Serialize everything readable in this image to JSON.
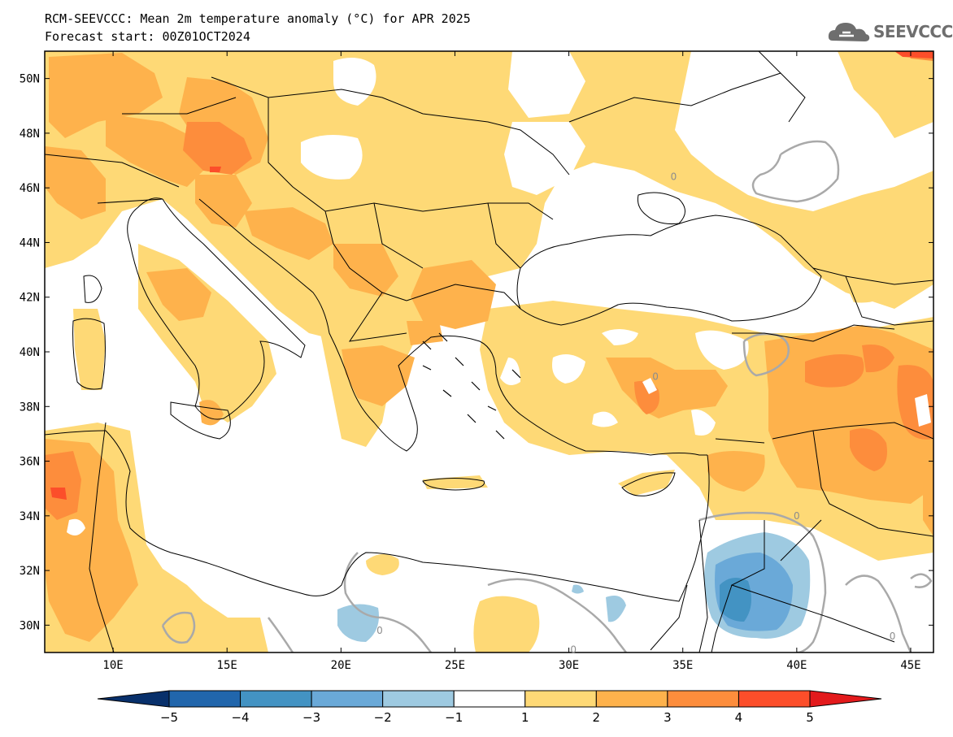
{
  "header": {
    "title": "RCM-SEEVCCC: Mean 2m temperature anomaly (°C) for APR 2025",
    "subtitle": "Forecast start: 00Z01OCT2024",
    "logo_text": "SEEVCCC"
  },
  "map": {
    "projection": "lat-lon",
    "lon_range": [
      7,
      46
    ],
    "lat_range": [
      29,
      51
    ],
    "lon_ticks": [
      {
        "value": 10,
        "label": "10E"
      },
      {
        "value": 15,
        "label": "15E"
      },
      {
        "value": 20,
        "label": "20E"
      },
      {
        "value": 25,
        "label": "25E"
      },
      {
        "value": 30,
        "label": "30E"
      },
      {
        "value": 35,
        "label": "35E"
      },
      {
        "value": 40,
        "label": "40E"
      },
      {
        "value": 45,
        "label": "45E"
      }
    ],
    "lat_ticks": [
      {
        "value": 50,
        "label": "50N"
      },
      {
        "value": 48,
        "label": "48N"
      },
      {
        "value": 46,
        "label": "46N"
      },
      {
        "value": 44,
        "label": "44N"
      },
      {
        "value": 42,
        "label": "42N"
      },
      {
        "value": 40,
        "label": "40N"
      },
      {
        "value": 38,
        "label": "38N"
      },
      {
        "value": 36,
        "label": "36N"
      },
      {
        "value": 34,
        "label": "34N"
      },
      {
        "value": 32,
        "label": "32N"
      },
      {
        "value": 30,
        "label": "30N"
      }
    ],
    "contour_labels": [
      {
        "text": "0",
        "lon": 34.6,
        "lat": 46.4
      },
      {
        "text": "0",
        "lon": 33.8,
        "lat": 39.1
      },
      {
        "text": "0",
        "lon": 40.0,
        "lat": 34.0
      },
      {
        "text": "0",
        "lon": 21.7,
        "lat": 29.8
      },
      {
        "text": "0",
        "lon": 30.2,
        "lat": 29.1
      },
      {
        "text": "0",
        "lon": 44.2,
        "lat": 29.6
      }
    ]
  },
  "colorbar": {
    "tick_labels": [
      "−5",
      "−4",
      "−3",
      "−2",
      "−1",
      "1",
      "2",
      "3",
      "4",
      "5"
    ],
    "colors": [
      "#08306b",
      "#2166ac",
      "#4393c3",
      "#6aa9d8",
      "#9ecae1",
      "#ffffff",
      "#fed976",
      "#feb24c",
      "#fd8d3c",
      "#fc4e2a",
      "#e31a1c"
    ],
    "min_arrow_color": "#08306b",
    "max_arrow_color": "#e31a1c"
  },
  "palette": {
    "anom_1_2": "#fed976",
    "anom_2_3": "#feb24c",
    "anom_3_4": "#fd8d3c",
    "anom_4_5": "#fc4e2a",
    "neg_1_2": "#9ecae1",
    "neg_2_3": "#6aa9d8",
    "neg_3_4": "#4393c3",
    "zero_contour": "#a9a9a9",
    "coastline": "#000000"
  }
}
